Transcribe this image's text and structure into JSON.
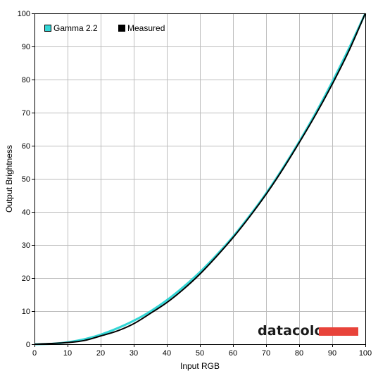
{
  "chart_data": {
    "type": "line",
    "title": "",
    "xlabel": "Input RGB",
    "ylabel": "Output Brightness",
    "xlim": [
      0,
      100
    ],
    "ylim": [
      0,
      100
    ],
    "x_ticks": [
      0,
      10,
      20,
      30,
      40,
      50,
      60,
      70,
      80,
      90,
      100
    ],
    "y_ticks": [
      0,
      10,
      20,
      30,
      40,
      50,
      60,
      70,
      80,
      90,
      100
    ],
    "grid": true,
    "legend_position": "top-left",
    "series": [
      {
        "name": "Gamma 2.2",
        "color": "#33d6d6",
        "x": [
          0,
          5,
          10,
          15,
          20,
          25,
          30,
          35,
          40,
          45,
          50,
          55,
          60,
          65,
          70,
          75,
          80,
          85,
          90,
          95,
          100
        ],
        "y": [
          0,
          0.1,
          0.6,
          1.5,
          2.9,
          4.8,
          7.1,
          9.9,
          13.3,
          17.3,
          21.8,
          26.9,
          32.5,
          38.8,
          45.6,
          53.1,
          61.2,
          69.9,
          79.3,
          89.3,
          100
        ]
      },
      {
        "name": "Measured",
        "color": "#000000",
        "x": [
          0,
          5,
          10,
          15,
          20,
          25,
          30,
          35,
          40,
          45,
          50,
          55,
          60,
          65,
          70,
          75,
          80,
          85,
          90,
          95,
          100
        ],
        "y": [
          0,
          0.2,
          0.5,
          1.1,
          2.5,
          4.0,
          6.2,
          9.3,
          12.6,
          16.6,
          21.2,
          26.5,
          32.2,
          38.5,
          45.3,
          52.8,
          60.9,
          69.4,
          78.6,
          88.6,
          100
        ]
      }
    ]
  },
  "logo": {
    "text": "datacolor",
    "bar_color": "#e8433a"
  }
}
